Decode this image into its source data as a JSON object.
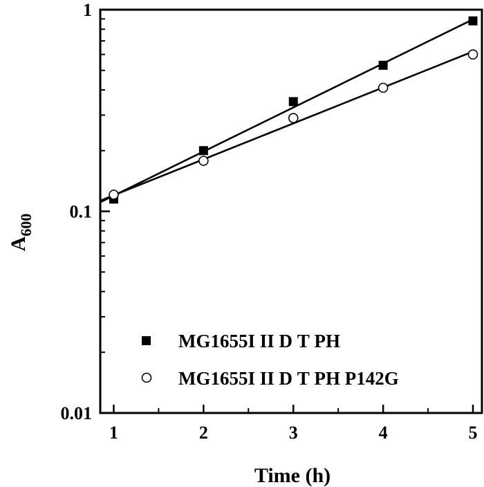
{
  "chart_data": {
    "type": "scatter",
    "title": "",
    "xlabel": "Time (h)",
    "ylabel": "A",
    "ylabel_subscript": "600",
    "xlim": [
      0.85,
      5.1
    ],
    "ylim": [
      0.01,
      1
    ],
    "yscale": "log",
    "x_ticks": [
      1,
      2,
      3,
      4,
      5
    ],
    "y_ticks": [
      0.01,
      0.1,
      1
    ],
    "y_tick_labels": [
      "0.01",
      "0.1",
      "1"
    ],
    "x_tick_labels": [
      "1",
      "2",
      "3",
      "4",
      "5"
    ],
    "legend_position": "bottom-left",
    "series": [
      {
        "name": "MG1655I II D T PH",
        "marker": "filled-square",
        "x": [
          1,
          2,
          3,
          4,
          5
        ],
        "y": [
          0.115,
          0.2,
          0.35,
          0.53,
          0.88
        ],
        "fit": [
          [
            0.85,
            0.111
          ],
          [
            5.0,
            0.895
          ]
        ]
      },
      {
        "name": "MG1655I II D T PH P142G",
        "marker": "open-circle",
        "x": [
          1,
          2,
          3,
          4,
          5
        ],
        "y": [
          0.121,
          0.178,
          0.29,
          0.41,
          0.6
        ],
        "fit": [
          [
            0.85,
            0.113
          ],
          [
            5.0,
            0.62
          ]
        ]
      }
    ]
  }
}
